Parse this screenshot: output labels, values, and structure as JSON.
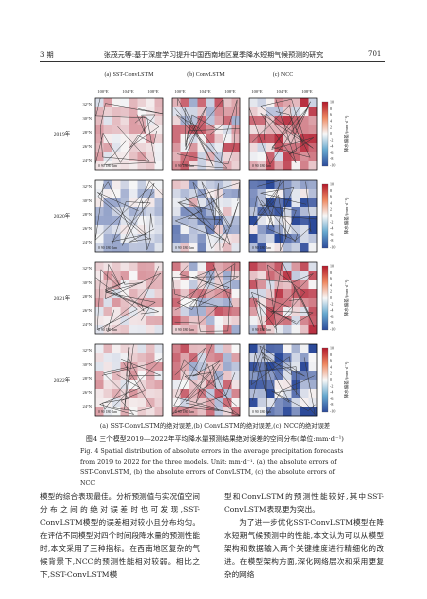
{
  "header": {
    "issue": "3 期",
    "title": "张茂元等:基于深度学习提升中国西南地区夏季降水短期气候预测的研究",
    "page": "701"
  },
  "figure": {
    "panel_titles": [
      "(a) SST-ConvLSTM",
      "(b) ConvLSTM",
      "(c) NCC"
    ],
    "lon_labels": [
      "100°E",
      "104°E",
      "108°E"
    ],
    "lat_labels": [
      "32°N",
      "30°N",
      "28°N",
      "26°N",
      "24°N"
    ],
    "row_labels": [
      "2019年",
      "2020年",
      "2021年",
      "2022年"
    ],
    "colorbar_ticks": [
      "10",
      "8",
      "6",
      "4",
      "2",
      "0",
      "-2",
      "-4",
      "-6",
      "-8",
      "-10"
    ],
    "colorbar_label": "降水偏差/(mm·d⁻¹)",
    "scale_bar": "0  90 180 km",
    "subcaption": "(a) SST-ConvLSTM的绝对误差,(b) ConvLSTM的绝对误差,(c) NCC的绝对误差",
    "caption_cn": "图4  三个模型2019—2022年平均降水量预测结果绝对误差的空间分布(单位:mm·d⁻¹)",
    "caption_en": "Fig. 4  Spatial distribution of absolute errors in the average precipitation forecasts from 2019 to 2022 for the three models. Unit: mm·d⁻¹. (a) the absolute errors of SST-ConvLSTM, (b) the absolute errors of ConvLSTM, (c) the absolute errors of NCC"
  },
  "body": {
    "left": "模型的综合表现最佳。分析预测值与实况值空间分布之间的绝对误差时也可发现,SST-ConvLSTM模型的误差相对较小且分布均匀。在评估不同模型对四个时间段降水量的预测性能时,本文采用了三种指标。在西南地区复杂的气候背景下,NCC的预测性能相对较弱。相比之下,SST-ConvLSTM模",
    "right_1": "型和ConvLSTM的预测性能较好,其中SST-ConvLSTM表现更为突出。",
    "right_2": "为了进一步优化SST-ConvLSTM模型在降水短期气候预测中的性能,本文认为可以从模型架构和数据输入两个关键维度进行精细化的改进。在模型架构方面,深化网络层次和采用更复杂的网络"
  }
}
